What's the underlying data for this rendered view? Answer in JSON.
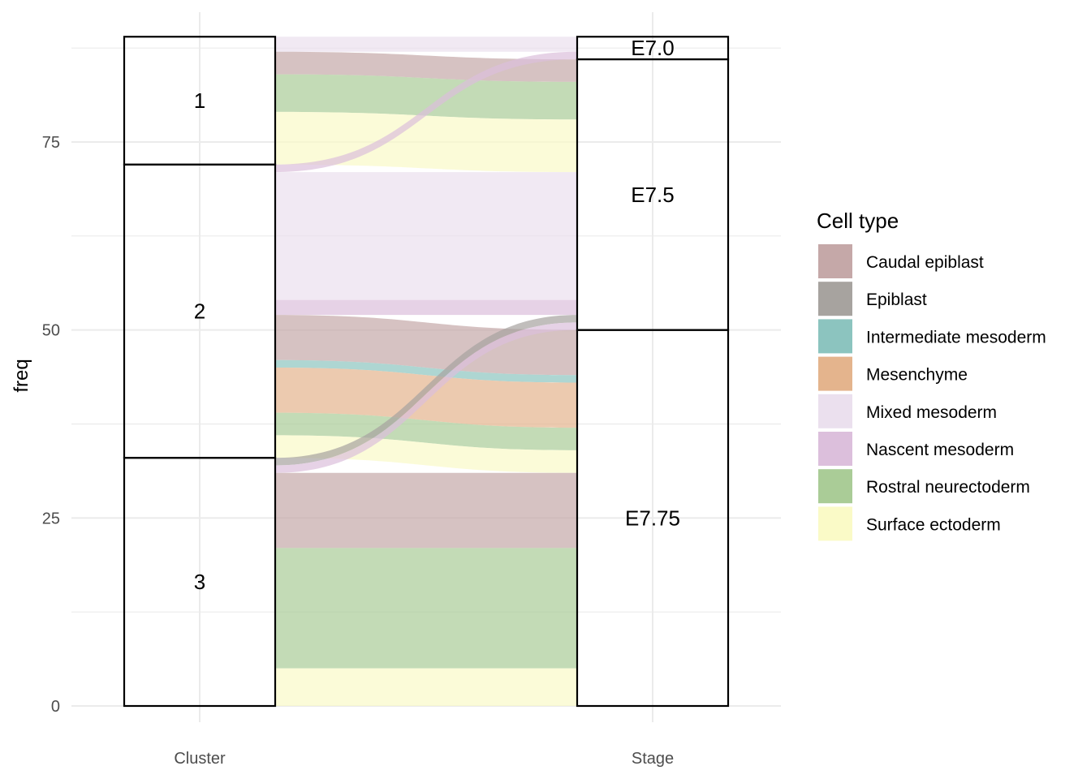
{
  "chart_data": {
    "type": "alluvial",
    "xlabel": "",
    "ylabel": "freq",
    "ylim": [
      0,
      88
    ],
    "y_ticks": [
      0,
      25,
      50,
      75
    ],
    "axes": [
      "Cluster",
      "Stage"
    ],
    "strata": {
      "Cluster": [
        "1",
        "2",
        "3"
      ],
      "Stage": [
        "E7.0",
        "E7.5",
        "E7.75"
      ]
    },
    "legend": {
      "title": "Cell type",
      "entries": [
        {
          "label": "Caudal epiblast",
          "color": "#c5a8a8"
        },
        {
          "label": "Epiblast",
          "color": "#a7a39f"
        },
        {
          "label": "Intermediate mesoderm",
          "color": "#8cc4bf"
        },
        {
          "label": "Mesenchyme",
          "color": "#e4b48d"
        },
        {
          "label": "Mixed mesoderm",
          "color": "#ebe0ee"
        },
        {
          "label": "Nascent mesoderm",
          "color": "#dcbfdc"
        },
        {
          "label": "Rostral neurectoderm",
          "color": "#aacc97"
        },
        {
          "label": "Surface ectoderm",
          "color": "#fafac7"
        }
      ]
    },
    "flows": [
      {
        "cluster": "1",
        "stage": "E7.0",
        "cell_type": "Mixed mesoderm",
        "freq": 2
      },
      {
        "cluster": "1",
        "stage": "E7.5",
        "cell_type": "Caudal epiblast",
        "freq": 3
      },
      {
        "cluster": "1",
        "stage": "E7.5",
        "cell_type": "Rostral neurectoderm",
        "freq": 5
      },
      {
        "cluster": "1",
        "stage": "E7.5",
        "cell_type": "Surface ectoderm",
        "freq": 7
      },
      {
        "cluster": "2",
        "stage": "E7.0",
        "cell_type": "Nascent mesoderm",
        "freq": 1
      },
      {
        "cluster": "2",
        "stage": "E7.5",
        "cell_type": "Mixed mesoderm",
        "freq": 17
      },
      {
        "cluster": "2",
        "stage": "E7.5",
        "cell_type": "Nascent mesoderm",
        "freq": 2
      },
      {
        "cluster": "2",
        "stage": "E7.75",
        "cell_type": "Caudal epiblast",
        "freq": 6
      },
      {
        "cluster": "2",
        "stage": "E7.75",
        "cell_type": "Intermediate mesoderm",
        "freq": 1
      },
      {
        "cluster": "2",
        "stage": "E7.75",
        "cell_type": "Mesenchyme",
        "freq": 6
      },
      {
        "cluster": "2",
        "stage": "E7.75",
        "cell_type": "Rostral neurectoderm",
        "freq": 3
      },
      {
        "cluster": "2",
        "stage": "E7.75",
        "cell_type": "Surface ectoderm",
        "freq": 3
      },
      {
        "cluster": "3",
        "stage": "E7.5",
        "cell_type": "Epiblast",
        "freq": 1
      },
      {
        "cluster": "3",
        "stage": "E7.5",
        "cell_type": "Nascent mesoderm",
        "freq": 1
      },
      {
        "cluster": "3",
        "stage": "E7.75",
        "cell_type": "Caudal epiblast",
        "freq": 10
      },
      {
        "cluster": "3",
        "stage": "E7.75",
        "cell_type": "Rostral neurectoderm",
        "freq": 16
      },
      {
        "cluster": "3",
        "stage": "E7.75",
        "cell_type": "Surface ectoderm",
        "freq": 5
      }
    ]
  }
}
